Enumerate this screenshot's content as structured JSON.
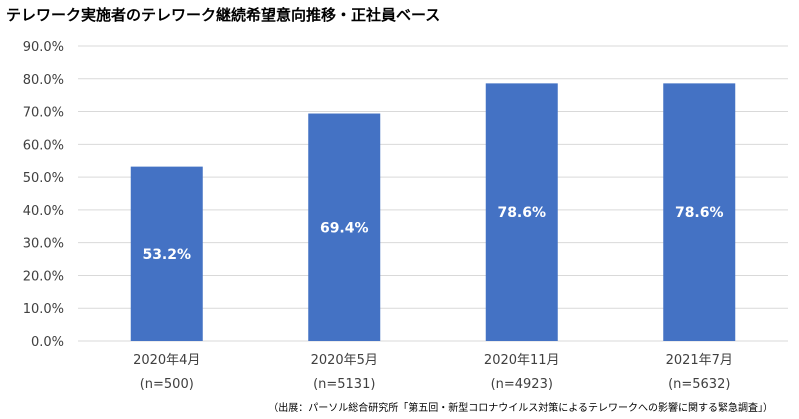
{
  "chart_data": {
    "type": "bar",
    "title": "テレワーク実施者のテレワーク継続希望意向推移・正社員ベース",
    "categories": [
      "2020年4月",
      "2020年5月",
      "2020年11月",
      "2021年7月"
    ],
    "category_notes": [
      "(n=500)",
      "(n=5131)",
      "(n=4923)",
      "(n=5632)"
    ],
    "values": [
      53.2,
      69.4,
      78.6,
      78.6
    ],
    "data_labels": [
      "53.2%",
      "69.4%",
      "78.6%",
      "78.6%"
    ],
    "ylim": [
      0,
      90
    ],
    "y_ticks": [
      "0.0%",
      "10.0%",
      "20.0%",
      "30.0%",
      "40.0%",
      "50.0%",
      "60.0%",
      "70.0%",
      "80.0%",
      "90.0%"
    ],
    "xlabel": "",
    "ylabel": "",
    "grid": true,
    "colors": {
      "bar": "#4472C4",
      "grid": "#D9D9D9",
      "data_label": "#FFFFFF",
      "axis_text": "#404040"
    }
  },
  "source_note": "（出展：パーソル総合研究所「第五回・新型コロナウイルス対策によるテレワークへの影響に関する緊急調査」）"
}
